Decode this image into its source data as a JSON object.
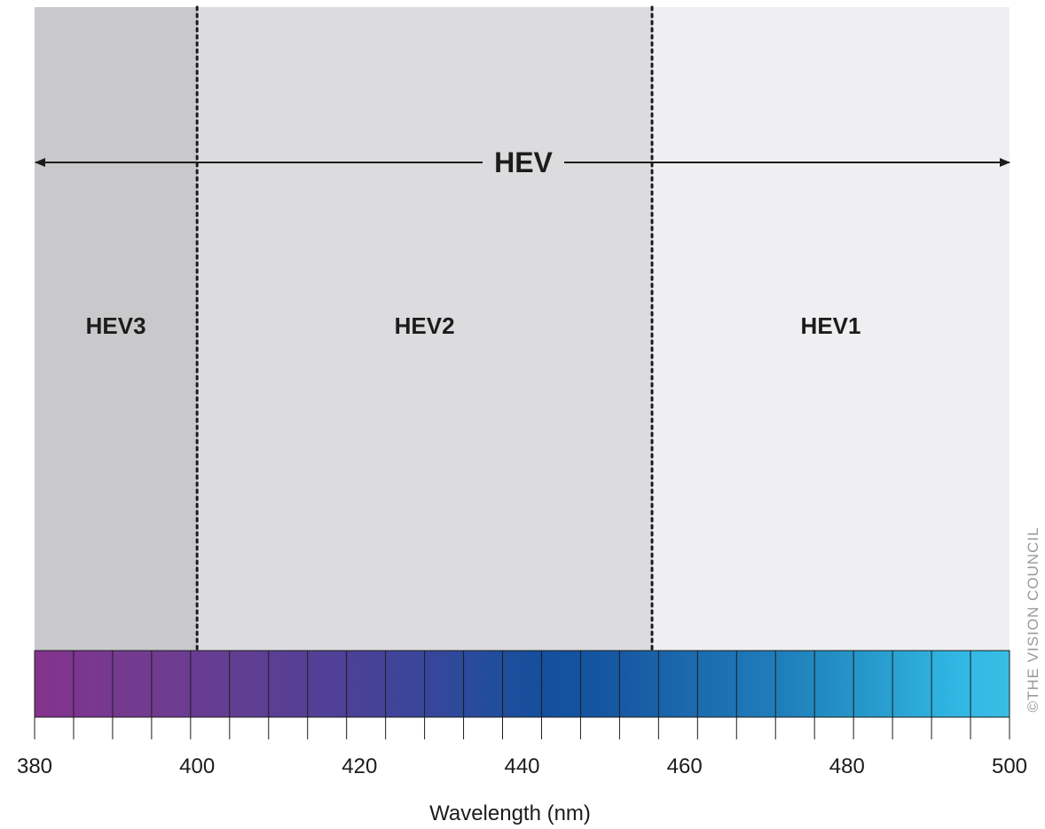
{
  "diagram": {
    "header_label": "HEV",
    "x_axis_label": "Wavelength (nm)",
    "credit": "©THE VISION COUNCIL",
    "x_range": [
      380,
      500
    ],
    "tick_labels": [
      "380",
      "400",
      "420",
      "440",
      "460",
      "480",
      "500"
    ],
    "tick_values": [
      380,
      400,
      420,
      440,
      460,
      480,
      500
    ],
    "boundaries_nm": [
      400,
      456
    ],
    "bands": [
      {
        "label": "HEV3",
        "from": 380,
        "to": 400,
        "color": "#c9c9cb"
      },
      {
        "label": "HEV2",
        "from": 400,
        "to": 456,
        "color": "#dcdcde"
      },
      {
        "label": "HEV1",
        "from": 456,
        "to": 500,
        "color": "#efeff1"
      }
    ],
    "spectrum_colors": [
      "#85338c",
      "#7d368f",
      "#763990",
      "#713b90",
      "#6a3c91",
      "#623e92",
      "#5b3f93",
      "#544095",
      "#4c4196",
      "#434398",
      "#38469a",
      "#2c4a9b",
      "#1f4d9c",
      "#144f9d",
      "#13539f",
      "#1759a3",
      "#1a62a9",
      "#1c6baf",
      "#1d74b5",
      "#1f7db9",
      "#2288c0",
      "#2694c8",
      "#2aa1d1",
      "#2eafdc",
      "#34b9e6",
      "#38bde4"
    ]
  }
}
